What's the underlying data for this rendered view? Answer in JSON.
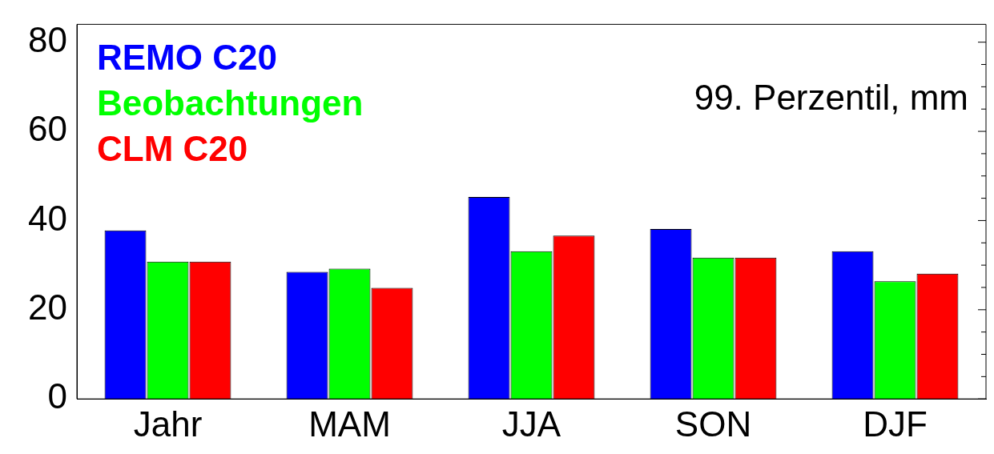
{
  "chart_data": {
    "type": "bar",
    "categories": [
      "Jahr",
      "MAM",
      "JJA",
      "SON",
      "DJF"
    ],
    "series": [
      {
        "name": "REMO C20",
        "color": "#0000ff",
        "values": [
          37.8,
          28.5,
          45.3,
          38.1,
          33.1
        ]
      },
      {
        "name": "Beobachtungen",
        "color": "#00ff00",
        "values": [
          30.8,
          29.2,
          33.1,
          31.7,
          26.4
        ]
      },
      {
        "name": "CLM C20",
        "color": "#ff0000",
        "values": [
          30.8,
          24.9,
          36.6,
          31.7,
          28.1
        ]
      }
    ],
    "ylim": [
      0,
      84
    ],
    "yticks": [
      0,
      {
        "value": 5,
        "label": null
      },
      {
        "value": 10,
        "label": null
      },
      {
        "value": 15,
        "label": null
      },
      20,
      {
        "value": 25,
        "label": null
      },
      {
        "value": 30,
        "label": null
      },
      {
        "value": 35,
        "label": null
      },
      40,
      {
        "value": 45,
        "label": null
      },
      {
        "value": 50,
        "label": null
      },
      {
        "value": 55,
        "label": null
      },
      60,
      {
        "value": 65,
        "label": null
      },
      {
        "value": 70,
        "label": null
      },
      {
        "value": 75,
        "label": null
      },
      80
    ],
    "annotations": [
      "99. Perzentil, mm"
    ],
    "legend": "top left",
    "grid": false
  }
}
